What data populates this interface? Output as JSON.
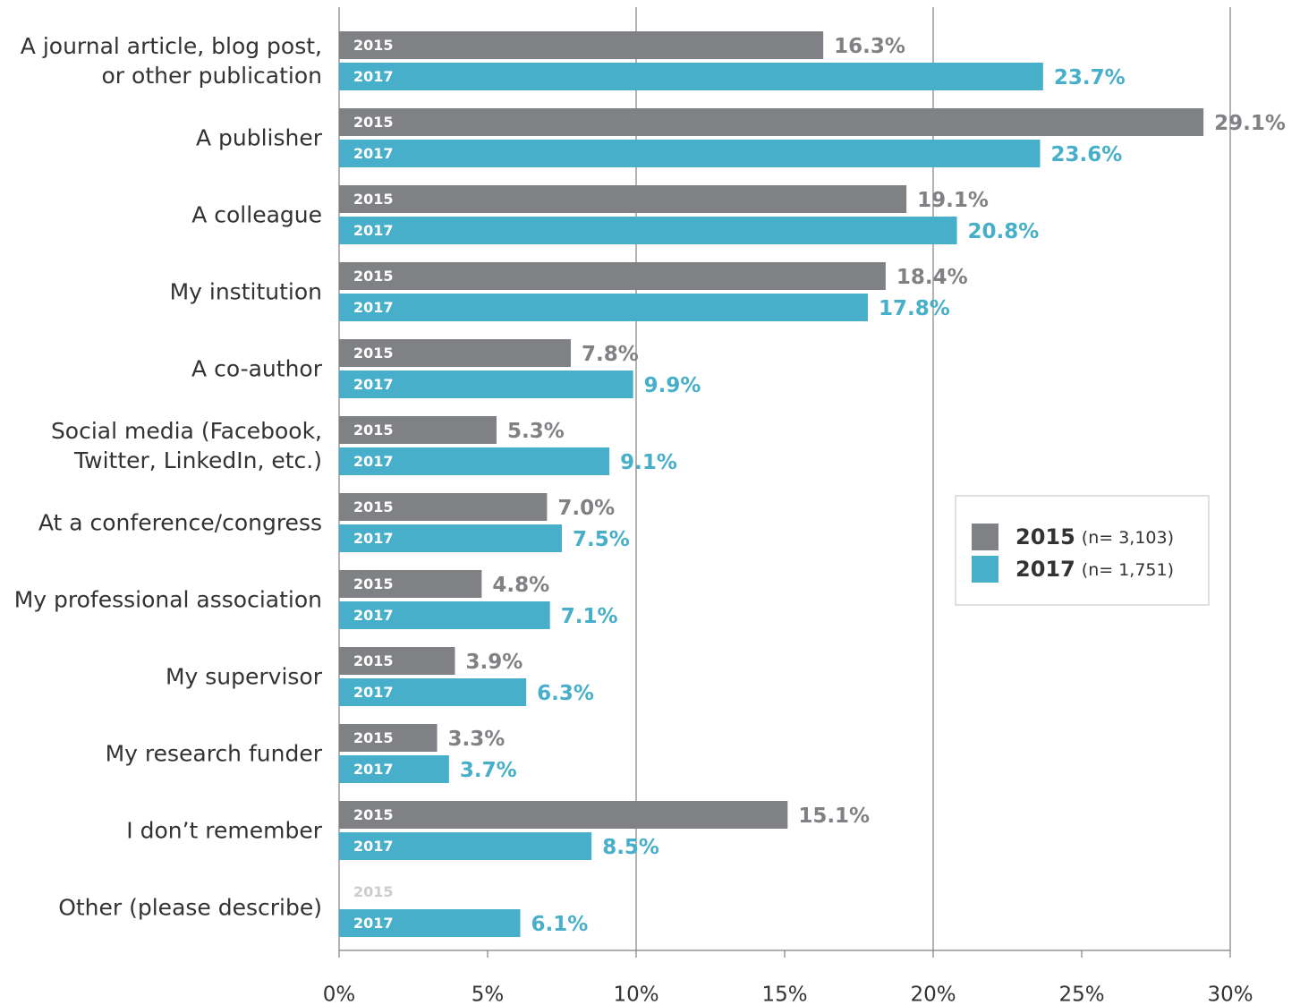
{
  "chart_data": {
    "type": "bar",
    "orientation": "horizontal",
    "categories": [
      "A journal article, blog post,\nor other publication",
      "A publisher",
      "A colleague",
      "My institution",
      "A co-author",
      "Social media (Facebook,\nTwitter, LinkedIn, etc.)",
      "At a conference/congress",
      "My professional association",
      "My supervisor",
      "My research funder",
      "I don’t remember",
      "Other (please describe)"
    ],
    "series": [
      {
        "name": "2015",
        "note": "(n= 3,103)",
        "color": "#808184",
        "values": [
          16.3,
          29.1,
          19.1,
          18.4,
          7.8,
          5.3,
          7.0,
          4.8,
          3.9,
          3.3,
          15.1,
          null
        ],
        "value_labels": [
          "16.3%",
          "29.1%",
          "19.1%",
          "18.4%",
          "7.8%",
          "5.3%",
          "7.0%",
          "4.8%",
          "3.9%",
          "3.3%",
          "15.1%",
          null
        ]
      },
      {
        "name": "2017",
        "note": "(n= 1,751)",
        "color": "#47afca",
        "values": [
          23.7,
          23.6,
          20.8,
          17.8,
          9.9,
          9.1,
          7.5,
          7.1,
          6.3,
          3.7,
          8.5,
          6.1
        ],
        "value_labels": [
          "23.7%",
          "23.6%",
          "20.8%",
          "17.8%",
          "9.9%",
          "9.1%",
          "7.5%",
          "7.1%",
          "6.3%",
          "3.7%",
          "8.5%",
          "6.1%"
        ]
      }
    ],
    "xlim": [
      0,
      30
    ],
    "xticks": [
      {
        "value": 0,
        "label": "0%"
      },
      {
        "value": 5,
        "label": "5%"
      },
      {
        "value": 10,
        "label": "10%"
      },
      {
        "value": 15,
        "label": "15%"
      },
      {
        "value": 20,
        "label": "20%"
      },
      {
        "value": 25,
        "label": "25%"
      },
      {
        "value": 30,
        "label": "30%"
      }
    ],
    "xgrid": [
      0,
      10,
      20,
      30
    ],
    "legend": "right"
  }
}
